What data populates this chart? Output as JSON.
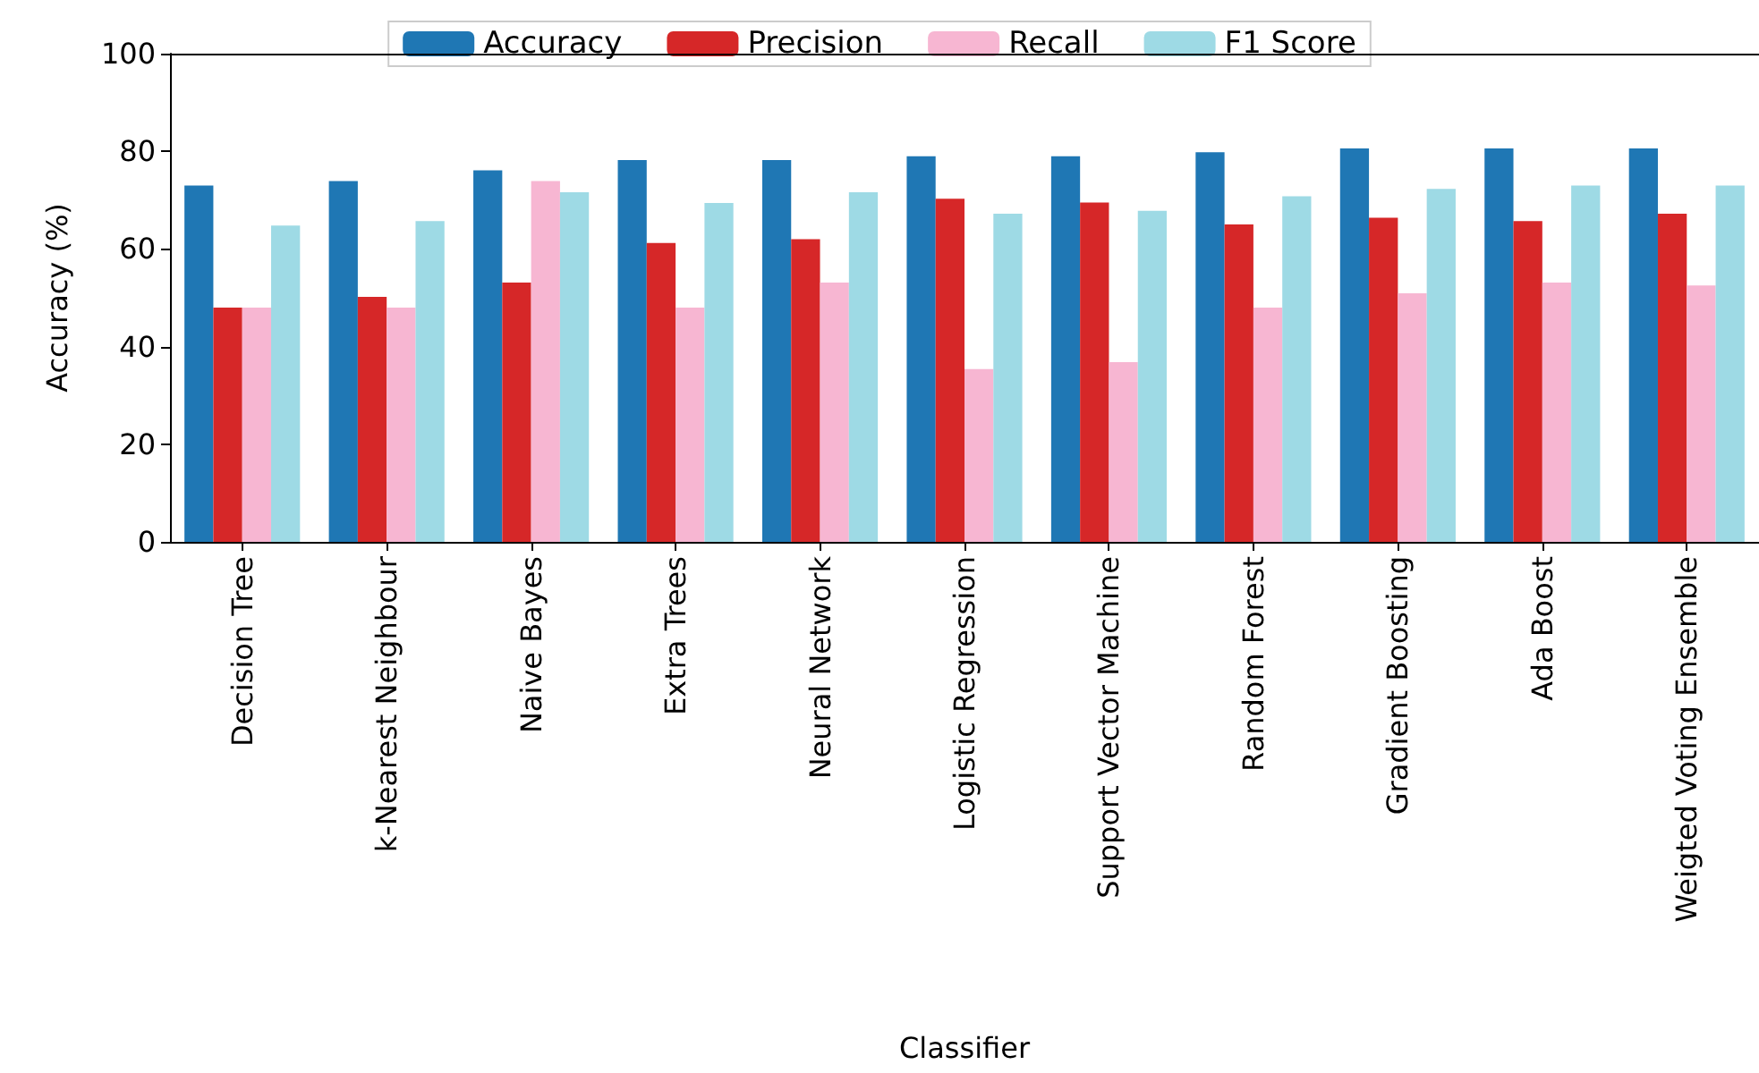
{
  "chart_data": {
    "type": "bar",
    "xlabel": "Classifier",
    "ylabel": "Accuracy (%)",
    "categories": [
      "Decision Tree",
      "k-Nearest Neighbour",
      "Naive Bayes",
      "Extra Trees",
      "Neural Network",
      "Logistic Regression",
      "Support Vector Machine",
      "Random Forest",
      "Gradient Boosting",
      "Ada Boost",
      "Weigted Voting Ensemble"
    ],
    "series": [
      {
        "name": "Accuracy",
        "color": "#1f77b4",
        "values": [
          73.0,
          73.9,
          76.1,
          78.2,
          78.2,
          79.0,
          79.0,
          79.8,
          80.6,
          80.6,
          80.6
        ]
      },
      {
        "name": "Precision",
        "color": "#d62728",
        "values": [
          48.0,
          50.2,
          53.1,
          61.2,
          62.0,
          70.3,
          69.5,
          65.0,
          66.4,
          65.7,
          67.2
        ]
      },
      {
        "name": "Recall",
        "color": "#f7b6d2",
        "values": [
          48.0,
          48.0,
          73.9,
          48.0,
          53.1,
          35.4,
          36.8,
          48.0,
          50.9,
          53.1,
          52.5
        ]
      },
      {
        "name": "F1 Score",
        "color": "#9edae5",
        "values": [
          64.8,
          65.7,
          71.6,
          69.4,
          71.6,
          67.2,
          67.8,
          70.8,
          72.3,
          73.0,
          73.0
        ]
      }
    ],
    "ylim": [
      0,
      100
    ],
    "yticks": [
      0,
      20,
      40,
      60,
      80,
      100
    ],
    "grid": false,
    "legend": "top"
  }
}
